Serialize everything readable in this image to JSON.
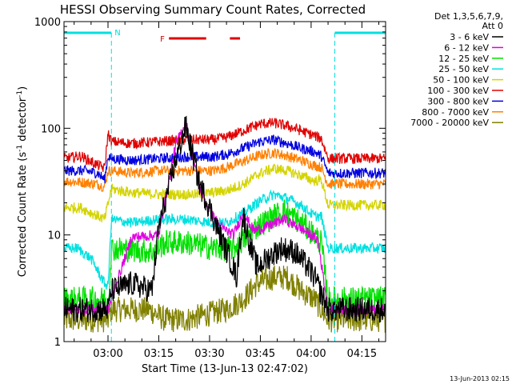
{
  "chart_data": {
    "type": "line",
    "title": "HESSI Observing Summary Count Rates, Corrected",
    "xlabel": "Start Time (13-Jun-13 02:47:02)",
    "ylabel_main": "Corrected Count Rate (s",
    "ylabel_sup1": "-1",
    "ylabel_mid": " detector",
    "ylabel_sup2": "-1",
    "ylabel_end": ")",
    "yscale": "log",
    "ylim": [
      1,
      1000
    ],
    "xlim_minutes": [
      0,
      95
    ],
    "x_ticks": [
      {
        "label": "03:00",
        "minutes": 13
      },
      {
        "label": "03:15",
        "minutes": 28
      },
      {
        "label": "03:30",
        "minutes": 43
      },
      {
        "label": "03:45",
        "minutes": 58
      },
      {
        "label": "04:00",
        "minutes": 73
      },
      {
        "label": "04:15",
        "minutes": 88
      }
    ],
    "y_ticks": [
      {
        "label": "1",
        "value": 1
      },
      {
        "label": "10",
        "value": 10
      },
      {
        "label": "100",
        "value": 100
      },
      {
        "label": "1000",
        "value": 1000
      }
    ],
    "legend": {
      "header1": "Det 1,3,5,6,7,9,",
      "header2": "Att 0",
      "placement": "right-outside"
    },
    "series": [
      {
        "name": "3 - 6 keV",
        "color": "#000000",
        "points": [
          [
            0,
            2
          ],
          [
            13,
            2
          ],
          [
            14,
            3
          ],
          [
            20,
            3.5
          ],
          [
            26,
            3
          ],
          [
            28,
            12
          ],
          [
            33,
            50
          ],
          [
            36,
            105
          ],
          [
            40,
            30
          ],
          [
            43,
            18
          ],
          [
            46,
            10
          ],
          [
            50,
            5
          ],
          [
            51,
            4
          ],
          [
            52,
            9
          ],
          [
            53,
            15
          ],
          [
            55,
            8
          ],
          [
            57,
            5
          ],
          [
            60,
            6
          ],
          [
            64,
            7.5
          ],
          [
            68,
            7
          ],
          [
            72,
            5
          ],
          [
            74,
            4
          ],
          [
            78,
            2
          ],
          [
            95,
            2
          ]
        ]
      },
      {
        "name": "6 - 12 keV",
        "color": "#e000e0",
        "points": [
          [
            0,
            2
          ],
          [
            13,
            2
          ],
          [
            20,
            9.5
          ],
          [
            28,
            10
          ],
          [
            33,
            70
          ],
          [
            36,
            115
          ],
          [
            40,
            28
          ],
          [
            43,
            17
          ],
          [
            46,
            12
          ],
          [
            50,
            10
          ],
          [
            53,
            16
          ],
          [
            56,
            11
          ],
          [
            60,
            12
          ],
          [
            65,
            14
          ],
          [
            69,
            12
          ],
          [
            73,
            10
          ],
          [
            75,
            9
          ],
          [
            78,
            2
          ],
          [
            95,
            2
          ]
        ]
      },
      {
        "name": "12 - 25 keV",
        "color": "#00e000",
        "points": [
          [
            0,
            2.5
          ],
          [
            12,
            2.5
          ],
          [
            13,
            2.2
          ],
          [
            14,
            7.5
          ],
          [
            26,
            7
          ],
          [
            30,
            8.5
          ],
          [
            36,
            8.5
          ],
          [
            44,
            7.5
          ],
          [
            50,
            7.5
          ],
          [
            53,
            9
          ],
          [
            57,
            12
          ],
          [
            62,
            15
          ],
          [
            65,
            17
          ],
          [
            70,
            13
          ],
          [
            74,
            10
          ],
          [
            76,
            8.5
          ],
          [
            78,
            2.5
          ],
          [
            95,
            2.5
          ]
        ]
      },
      {
        "name": "25 - 50 keV",
        "color": "#00e0e0",
        "points": [
          [
            0,
            7.5
          ],
          [
            4,
            7.5
          ],
          [
            8,
            6
          ],
          [
            12,
            3.5
          ],
          [
            13,
            3.3
          ],
          [
            14,
            14
          ],
          [
            20,
            13
          ],
          [
            28,
            14
          ],
          [
            36,
            14
          ],
          [
            44,
            13
          ],
          [
            48,
            13
          ],
          [
            53,
            16
          ],
          [
            58,
            21
          ],
          [
            62,
            24
          ],
          [
            66,
            22
          ],
          [
            70,
            19
          ],
          [
            74,
            15
          ],
          [
            76,
            15
          ],
          [
            78,
            7.5
          ],
          [
            95,
            7.5
          ]
        ]
      },
      {
        "name": "50 - 100 keV",
        "color": "#d4d400",
        "points": [
          [
            0,
            18
          ],
          [
            5,
            18
          ],
          [
            12,
            14
          ],
          [
            14,
            27
          ],
          [
            20,
            25
          ],
          [
            28,
            24
          ],
          [
            40,
            24
          ],
          [
            48,
            26
          ],
          [
            53,
            30
          ],
          [
            58,
            38
          ],
          [
            62,
            42
          ],
          [
            66,
            40
          ],
          [
            70,
            36
          ],
          [
            74,
            32
          ],
          [
            76,
            33
          ],
          [
            78,
            19
          ],
          [
            95,
            19
          ]
        ]
      },
      {
        "name": "100 - 300 keV",
        "color": "#e00000",
        "points": [
          [
            0,
            52
          ],
          [
            5,
            55
          ],
          [
            10,
            45
          ],
          [
            12,
            42
          ],
          [
            13,
            90
          ],
          [
            14,
            75
          ],
          [
            20,
            72
          ],
          [
            28,
            75
          ],
          [
            36,
            78
          ],
          [
            44,
            78
          ],
          [
            48,
            82
          ],
          [
            53,
            95
          ],
          [
            58,
            110
          ],
          [
            62,
            112
          ],
          [
            66,
            105
          ],
          [
            70,
            95
          ],
          [
            74,
            85
          ],
          [
            76,
            80
          ],
          [
            78,
            52
          ],
          [
            95,
            52
          ]
        ]
      },
      {
        "name": "300 - 800 keV",
        "color": "#0000e0",
        "points": [
          [
            0,
            40
          ],
          [
            6,
            40
          ],
          [
            10,
            38
          ],
          [
            12,
            33
          ],
          [
            13,
            55
          ],
          [
            14,
            52
          ],
          [
            20,
            50
          ],
          [
            28,
            52
          ],
          [
            36,
            54
          ],
          [
            44,
            54
          ],
          [
            48,
            57
          ],
          [
            53,
            65
          ],
          [
            58,
            75
          ],
          [
            62,
            78
          ],
          [
            66,
            72
          ],
          [
            70,
            65
          ],
          [
            74,
            60
          ],
          [
            76,
            55
          ],
          [
            78,
            38
          ],
          [
            95,
            38
          ]
        ]
      },
      {
        "name": "800 - 7000 keV",
        "color": "#ff8000",
        "points": [
          [
            0,
            32
          ],
          [
            6,
            31
          ],
          [
            10,
            30
          ],
          [
            12,
            28
          ],
          [
            13,
            40
          ],
          [
            14,
            40
          ],
          [
            20,
            38
          ],
          [
            28,
            40
          ],
          [
            36,
            40
          ],
          [
            44,
            40
          ],
          [
            48,
            43
          ],
          [
            53,
            49
          ],
          [
            58,
            56
          ],
          [
            62,
            59
          ],
          [
            66,
            55
          ],
          [
            70,
            50
          ],
          [
            74,
            45
          ],
          [
            76,
            43
          ],
          [
            78,
            30
          ],
          [
            95,
            30
          ]
        ]
      },
      {
        "name": "7000 - 20000 keV",
        "color": "#808000",
        "points": [
          [
            0,
            1.6
          ],
          [
            13,
            1.6
          ],
          [
            14,
            2
          ],
          [
            25,
            2
          ],
          [
            30,
            1.6
          ],
          [
            36,
            1.6
          ],
          [
            48,
            2
          ],
          [
            53,
            2.5
          ],
          [
            57,
            3.5
          ],
          [
            62,
            4
          ],
          [
            66,
            4
          ],
          [
            70,
            3
          ],
          [
            74,
            2.5
          ],
          [
            78,
            1.6
          ],
          [
            95,
            1.6
          ]
        ]
      }
    ],
    "annotations": {
      "night_label": "N",
      "flare_label": "F",
      "night_intervals_minutes": [
        [
          0,
          14
        ],
        [
          80,
          95
        ]
      ],
      "flare_intervals_minutes": [
        [
          31,
          42
        ],
        [
          49,
          52
        ]
      ]
    }
  },
  "footer": {
    "timestamp": "13-Jun-2013 02:15"
  }
}
